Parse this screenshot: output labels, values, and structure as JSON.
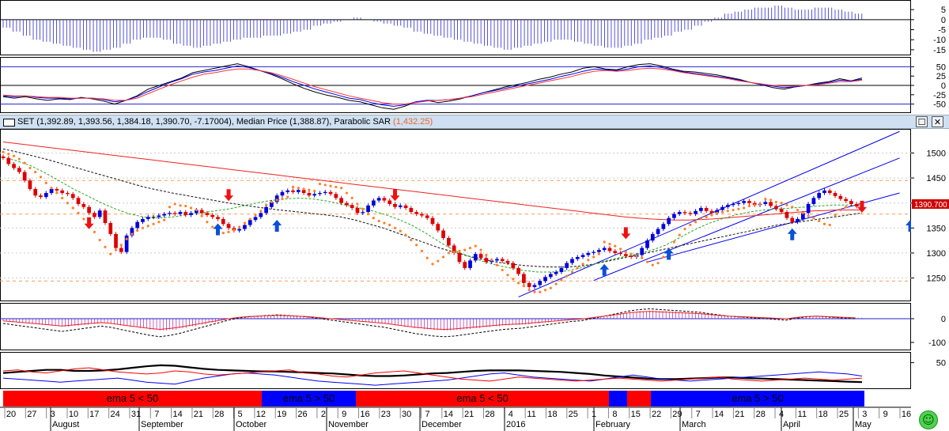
{
  "header": {
    "series_name": "SET",
    "ohlc_text": "(1,392.89, 1,393.56, 1,384.18, 1,390.70, -7.17004)",
    "median_label": "Median Price",
    "median_value": "(1,388.87)",
    "sar_label": "Parabolic SAR",
    "sar_value": "(1,432.25)",
    "maximize_icon": "maximize-icon",
    "close_icon": "close-icon"
  },
  "price_tag": "1390.700",
  "timeline": {
    "day_ticks": [
      "20",
      "27",
      "3",
      "10",
      "17",
      "24",
      "31",
      "7",
      "14",
      "21",
      "28",
      "5",
      "12",
      "19",
      "26",
      "2",
      "9",
      "16",
      "23",
      "30",
      "7",
      "14",
      "21",
      "28",
      "4",
      "11",
      "18",
      "25",
      "1",
      "8",
      "15",
      "22",
      "29",
      "7",
      "14",
      "21",
      "28",
      "4",
      "11",
      "18",
      "25",
      "3",
      "9",
      "16"
    ],
    "months": [
      "August",
      "September",
      "October",
      "November",
      "December",
      "2016",
      "February",
      "March",
      "April",
      "May"
    ]
  },
  "ema_bar": {
    "segments": [
      {
        "label": "ema 5 < 50",
        "color": "#ff0000"
      },
      {
        "label": "ema 5 > 50",
        "color": "#0000ff"
      },
      {
        "label": "ema 5 < 50",
        "color": "#ff0000"
      },
      {
        "label": "",
        "color": "#0000ff"
      },
      {
        "label": "",
        "color": "#ff0000"
      },
      {
        "label": "ema 5 > 50",
        "color": "#0000ff"
      }
    ]
  },
  "colors": {
    "up_candle": "#0000dd",
    "down_candle": "#dd0000",
    "neutral_candle": "#000000",
    "sar": "#ff7f27",
    "ema_long": "#ee2222",
    "ema_mid": "#111111",
    "ema_short": "#22aa22",
    "channel": "#0000ee",
    "buy_arrow": "#0a50d8",
    "sell_arrow": "#ee1111"
  },
  "chart_data": [
    {
      "type": "bar",
      "panel": "top-oscillator",
      "yticks": [
        "5",
        "0",
        "-5",
        "-10",
        "-15"
      ],
      "ylim": [
        -17,
        9
      ],
      "values": [
        -4,
        -6,
        -8,
        -10,
        -11,
        -12,
        -13,
        -14,
        -15,
        -16,
        -15,
        -14,
        -12,
        -10,
        -9,
        -9,
        -10,
        -12,
        -13,
        -14,
        -13,
        -12,
        -11,
        -10,
        -9,
        -9,
        -8,
        -8,
        -7,
        -6,
        -5,
        -3,
        -2,
        -1,
        0,
        1,
        0,
        -1,
        -2,
        -3,
        -4,
        -6,
        -7,
        -8,
        -9,
        -10,
        -11,
        -12,
        -13,
        -14,
        -15,
        -14,
        -13,
        -12,
        -11,
        -10,
        -10,
        -11,
        -12,
        -13,
        -14,
        -14,
        -13,
        -12,
        -10,
        -9,
        -8,
        -6,
        -5,
        -3,
        -1,
        1,
        3,
        4,
        5,
        6,
        6,
        7,
        6,
        5,
        5,
        6,
        6,
        5,
        4,
        3
      ]
    },
    {
      "type": "line",
      "panel": "stochastic",
      "yticks": [
        "50",
        "25",
        "0",
        "-25",
        "-50"
      ],
      "ylim": [
        -72,
        72
      ],
      "series": [
        {
          "color": "#000000",
          "values": [
            -30,
            -34,
            -30,
            -36,
            -40,
            -36,
            -38,
            -32,
            -36,
            -42,
            -50,
            -40,
            -28,
            -10,
            0,
            10,
            20,
            34,
            40,
            46,
            52,
            58,
            50,
            40,
            30,
            18,
            4,
            -8,
            -18,
            -26,
            -32,
            -40,
            -44,
            -52,
            -60,
            -64,
            -56,
            -44,
            -40,
            -46,
            -42,
            -36,
            -28,
            -20,
            -12,
            -4,
            2,
            8,
            16,
            22,
            30,
            36,
            46,
            50,
            44,
            42,
            50,
            56,
            58,
            52,
            44,
            38,
            36,
            32,
            28,
            22,
            16,
            8,
            2,
            -6,
            -10,
            -4,
            0,
            6,
            10,
            18,
            12,
            20
          ]
        },
        {
          "color": "#0000ee",
          "values": [
            -28,
            -30,
            -28,
            -32,
            -34,
            -34,
            -36,
            -34,
            -34,
            -38,
            -44,
            -40,
            -30,
            -16,
            -4,
            8,
            18,
            30,
            36,
            40,
            46,
            52,
            48,
            40,
            32,
            22,
            10,
            0,
            -10,
            -18,
            -26,
            -34,
            -38,
            -46,
            -52,
            -56,
            -52,
            -44,
            -40,
            -40,
            -38,
            -34,
            -28,
            -20,
            -14,
            -8,
            -2,
            4,
            10,
            16,
            24,
            30,
            38,
            44,
            42,
            40,
            44,
            50,
            52,
            48,
            42,
            36,
            32,
            28,
            24,
            20,
            14,
            8,
            2,
            -2,
            -6,
            -4,
            0,
            4,
            8,
            14,
            12,
            16
          ]
        },
        {
          "color": "#ff3333",
          "values": [
            -26,
            -28,
            -28,
            -30,
            -32,
            -32,
            -34,
            -34,
            -34,
            -36,
            -40,
            -40,
            -34,
            -22,
            -10,
            2,
            12,
            22,
            30,
            34,
            40,
            44,
            44,
            40,
            34,
            26,
            16,
            6,
            -4,
            -12,
            -20,
            -28,
            -34,
            -40,
            -46,
            -50,
            -50,
            -46,
            -42,
            -40,
            -38,
            -34,
            -30,
            -24,
            -18,
            -12,
            -6,
            0,
            6,
            12,
            18,
            24,
            32,
            38,
            40,
            38,
            40,
            44,
            46,
            44,
            40,
            34,
            30,
            26,
            22,
            18,
            12,
            8,
            4,
            0,
            -2,
            -2,
            0,
            2,
            6,
            10,
            10,
            14
          ]
        }
      ]
    },
    {
      "type": "candlestick",
      "panel": "price",
      "yticks": [
        "1500",
        "1450",
        "1400",
        "1350",
        "1300",
        "1250"
      ],
      "ylim": [
        1205,
        1545
      ],
      "last_value": 1390.7,
      "closes": [
        1490,
        1478,
        1470,
        1462,
        1445,
        1428,
        1415,
        1412,
        1420,
        1428,
        1425,
        1420,
        1418,
        1410,
        1398,
        1392,
        1380,
        1372,
        1385,
        1360,
        1338,
        1310,
        1302,
        1335,
        1350,
        1362,
        1368,
        1372,
        1372,
        1375,
        1378,
        1380,
        1378,
        1382,
        1376,
        1380,
        1386,
        1380,
        1376,
        1372,
        1368,
        1358,
        1350,
        1345,
        1348,
        1356,
        1366,
        1372,
        1380,
        1392,
        1402,
        1415,
        1422,
        1425,
        1422,
        1426,
        1420,
        1415,
        1418,
        1420,
        1422,
        1418,
        1410,
        1400,
        1396,
        1390,
        1380,
        1382,
        1395,
        1405,
        1410,
        1405,
        1398,
        1392,
        1395,
        1390,
        1382,
        1378,
        1375,
        1370,
        1358,
        1345,
        1330,
        1315,
        1300,
        1282,
        1270,
        1285,
        1298,
        1290,
        1282,
        1285,
        1288,
        1284,
        1280,
        1270,
        1258,
        1240,
        1232,
        1236,
        1244,
        1252,
        1258,
        1262,
        1270,
        1280,
        1288,
        1292,
        1296,
        1300,
        1302,
        1306,
        1310,
        1304,
        1300,
        1298,
        1294,
        1292,
        1296,
        1310,
        1325,
        1338,
        1348,
        1358,
        1370,
        1378,
        1382,
        1380,
        1378,
        1384,
        1390,
        1384,
        1380,
        1386,
        1392,
        1396,
        1398,
        1400,
        1404,
        1400,
        1396,
        1398,
        1402,
        1394,
        1388,
        1382,
        1370,
        1362,
        1368,
        1380,
        1398,
        1410,
        1420,
        1425,
        1420,
        1414,
        1408,
        1404,
        1398,
        1393,
        1390
      ],
      "sar": [
        1502,
        1498,
        1494,
        1488,
        1480,
        1470,
        1462,
        1452,
        1440,
        1430,
        1420,
        1410,
        1400,
        1390,
        1380,
        1368,
        1356,
        1342,
        1326,
        1312,
        1298,
        1306,
        1316,
        1328,
        1338,
        1345,
        1350,
        1354,
        1358,
        1362,
        1366,
        1392,
        1398,
        1395,
        1394,
        1390,
        1386,
        1374,
        1362,
        1352,
        1343,
        1340,
        1342,
        1346,
        1352,
        1360,
        1368,
        1376,
        1384,
        1396,
        1402,
        1406,
        1408,
        1412,
        1432,
        1430,
        1428,
        1426,
        1424,
        1438,
        1436,
        1434,
        1432,
        1430,
        1420,
        1410,
        1398,
        1388,
        1378,
        1370,
        1364,
        1360,
        1356,
        1350,
        1344,
        1336,
        1326,
        1316,
        1304,
        1290,
        1278,
        1284,
        1292,
        1300,
        1302,
        1304,
        1306,
        1310,
        1314,
        1306,
        1296,
        1286,
        1276,
        1266,
        1256,
        1248,
        1240,
        1234,
        1226,
        1222,
        1222,
        1226,
        1230,
        1238,
        1246,
        1254,
        1262,
        1270,
        1278,
        1286,
        1292,
        1298,
        1322,
        1318,
        1314,
        1308,
        1302,
        1298,
        1294,
        1290,
        1282,
        1276,
        1280,
        1292,
        1308,
        1322,
        1336,
        1348,
        1356,
        1362,
        1368,
        1372,
        1376,
        1380,
        1382,
        1384,
        1386,
        1388,
        1390,
        1394,
        1396,
        1398,
        1408,
        1406,
        1402,
        1400,
        1396,
        1392,
        1386,
        1380,
        1374,
        1370,
        1364,
        1358,
        1356,
        1376,
        1386,
        1392
      ],
      "ema_long": [
        1522,
        1519,
        1516,
        1513,
        1510,
        1507,
        1504,
        1501,
        1498,
        1495,
        1492,
        1489,
        1486,
        1483,
        1480,
        1477,
        1474,
        1471,
        1468,
        1465,
        1462,
        1459,
        1456,
        1453,
        1450,
        1447,
        1444,
        1441,
        1438,
        1435,
        1432,
        1429,
        1426,
        1423,
        1420,
        1417,
        1414,
        1411,
        1408,
        1405,
        1402,
        1399,
        1396,
        1393,
        1390,
        1387,
        1384,
        1381,
        1378,
        1375,
        1372,
        1370,
        1368,
        1367,
        1366,
        1366,
        1367,
        1368,
        1370,
        1372,
        1374,
        1376,
        1378,
        1380,
        1382,
        1384,
        1385,
        1386,
        1386,
        1386
      ],
      "ema_mid": [
        1508,
        1502,
        1495,
        1488,
        1480,
        1472,
        1464,
        1456,
        1448,
        1440,
        1432,
        1426,
        1420,
        1415,
        1410,
        1405,
        1400,
        1396,
        1392,
        1388,
        1385,
        1382,
        1379,
        1376,
        1372,
        1366,
        1358,
        1350,
        1340,
        1330,
        1320,
        1310,
        1302,
        1294,
        1288,
        1282,
        1278,
        1275,
        1273,
        1272,
        1272,
        1274,
        1278,
        1284,
        1290,
        1296,
        1302,
        1308,
        1314,
        1320,
        1326,
        1332,
        1338,
        1344,
        1350,
        1356,
        1360,
        1364,
        1368,
        1372,
        1376,
        1380
      ],
      "ema_short": [
        1492,
        1484,
        1474,
        1460,
        1444,
        1428,
        1414,
        1400,
        1388,
        1378,
        1372,
        1370,
        1372,
        1376,
        1380,
        1384,
        1388,
        1394,
        1400,
        1405,
        1408,
        1410,
        1408,
        1404,
        1398,
        1392,
        1386,
        1378,
        1368,
        1356,
        1340,
        1322,
        1306,
        1294,
        1284,
        1276,
        1270,
        1265,
        1262,
        1262,
        1264,
        1270,
        1278,
        1286,
        1292,
        1298,
        1305,
        1315,
        1330,
        1345,
        1358,
        1368,
        1376,
        1382,
        1386,
        1388,
        1390,
        1392,
        1394,
        1396,
        1396,
        1394
      ]
    },
    {
      "type": "bar",
      "panel": "macd",
      "yticks": [
        "0",
        "-100"
      ],
      "ylim": [
        -130,
        60
      ],
      "values": [
        -10,
        -14,
        -18,
        -22,
        -26,
        -30,
        -34,
        -30,
        -26,
        -22,
        -18,
        -22,
        -28,
        -34,
        -40,
        -46,
        -50,
        -46,
        -40,
        -32,
        -24,
        -16,
        -8,
        0,
        6,
        10,
        12,
        14,
        16,
        14,
        12,
        10,
        6,
        2,
        -2,
        -6,
        -10,
        -14,
        -18,
        -22,
        -28,
        -34,
        -40,
        -44,
        -48,
        -50,
        -48,
        -44,
        -40,
        -36,
        -32,
        -28,
        -26,
        -24,
        -20,
        -16,
        -12,
        -8,
        -4,
        -2,
        4,
        10,
        16,
        22,
        28,
        32,
        34,
        32,
        30,
        28,
        26,
        24,
        20,
        16,
        12,
        10,
        8,
        6,
        4,
        2,
        0,
        6,
        10,
        12,
        10,
        8,
        6,
        4
      ]
    },
    {
      "type": "line",
      "panel": "adx",
      "yticks": [
        "50"
      ],
      "ylim": [
        0,
        68
      ],
      "series": [
        {
          "color": "#000000",
          "values": [
            30,
            32,
            34,
            36,
            36,
            34,
            34,
            35,
            37,
            40,
            43,
            45,
            44,
            41,
            38,
            36,
            35,
            34,
            33,
            33,
            32,
            31,
            30,
            29,
            27,
            25,
            24,
            24,
            25,
            27,
            29,
            30,
            32,
            34,
            35,
            35,
            35,
            34,
            33,
            32,
            30,
            28,
            25,
            23,
            21,
            19,
            18,
            18,
            19,
            20,
            21,
            21,
            20,
            19,
            18,
            17,
            16,
            15,
            14,
            13,
            12
          ]
        },
        {
          "color": "#0000ee",
          "values": [
            20,
            18,
            16,
            14,
            12,
            14,
            16,
            18,
            20,
            16,
            12,
            10,
            8,
            14,
            20,
            24,
            28,
            30,
            28,
            26,
            22,
            18,
            14,
            12,
            10,
            8,
            6,
            8,
            10,
            12,
            14,
            16,
            20,
            24,
            28,
            30,
            26,
            22,
            20,
            18,
            16,
            14,
            18,
            22,
            26,
            22,
            18,
            16,
            14,
            16,
            18,
            20,
            22,
            24,
            26,
            28,
            30,
            32,
            30,
            28,
            24
          ]
        },
        {
          "color": "#ff0000",
          "values": [
            34,
            36,
            32,
            30,
            34,
            38,
            40,
            36,
            32,
            30,
            28,
            30,
            34,
            32,
            28,
            26,
            28,
            30,
            32,
            34,
            36,
            30,
            28,
            24,
            22,
            26,
            30,
            32,
            34,
            30,
            26,
            22,
            18,
            16,
            14,
            18,
            22,
            20,
            18,
            16,
            14,
            16,
            18,
            20,
            18,
            16,
            14,
            16,
            18,
            20,
            22,
            18,
            16,
            14,
            16,
            18,
            20,
            18,
            16,
            18,
            20
          ]
        }
      ]
    }
  ]
}
